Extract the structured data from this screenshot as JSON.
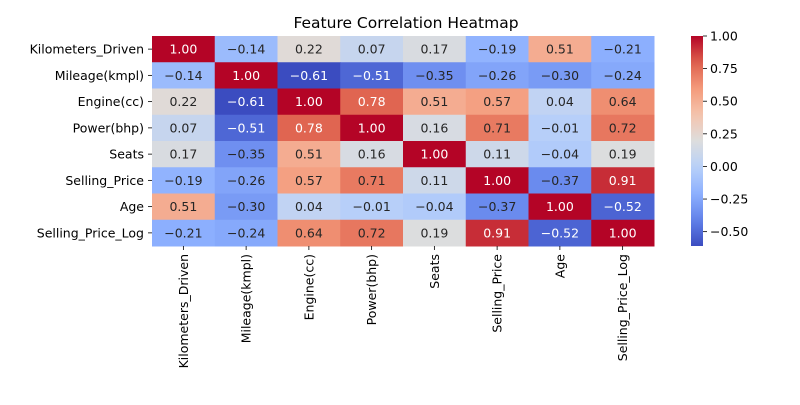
{
  "chart_data": {
    "type": "heatmap",
    "title": "Feature Correlation Heatmap",
    "xlabel": "",
    "ylabel": "",
    "row_labels": [
      "Kilometers_Driven",
      "Mileage(kmpl)",
      "Engine(cc)",
      "Power(bhp)",
      "Seats",
      "Selling_Price",
      "Age",
      "Selling_Price_Log"
    ],
    "col_labels": [
      "Kilometers_Driven",
      "Mileage(kmpl)",
      "Engine(cc)",
      "Power(bhp)",
      "Seats",
      "Selling_Price",
      "Age",
      "Selling_Price_Log"
    ],
    "values": [
      [
        1.0,
        -0.14,
        0.22,
        0.07,
        0.17,
        -0.19,
        0.51,
        -0.21
      ],
      [
        -0.14,
        1.0,
        -0.61,
        -0.51,
        -0.35,
        -0.26,
        -0.3,
        -0.24
      ],
      [
        0.22,
        -0.61,
        1.0,
        0.78,
        0.51,
        0.57,
        0.04,
        0.64
      ],
      [
        0.07,
        -0.51,
        0.78,
        1.0,
        0.16,
        0.71,
        -0.01,
        0.72
      ],
      [
        0.17,
        -0.35,
        0.51,
        0.16,
        1.0,
        0.11,
        -0.04,
        0.19
      ],
      [
        -0.19,
        -0.26,
        0.57,
        0.71,
        0.11,
        1.0,
        -0.37,
        0.91
      ],
      [
        0.51,
        -0.3,
        0.04,
        -0.01,
        -0.04,
        -0.37,
        1.0,
        -0.52
      ],
      [
        -0.21,
        -0.24,
        0.64,
        0.72,
        0.19,
        0.91,
        -0.52,
        1.0
      ]
    ],
    "value_format": "0.00",
    "colormap": "coolwarm",
    "vmin": -0.61,
    "vmax": 1.0,
    "colorbar_ticks": [
      "1.00",
      "0.75",
      "0.50",
      "0.25",
      "0.00",
      "−0.25",
      "−0.50"
    ],
    "colorbar_tick_values": [
      1.0,
      0.75,
      0.5,
      0.25,
      0.0,
      -0.25,
      -0.5
    ],
    "grid": false,
    "colorbar_position": "right"
  }
}
